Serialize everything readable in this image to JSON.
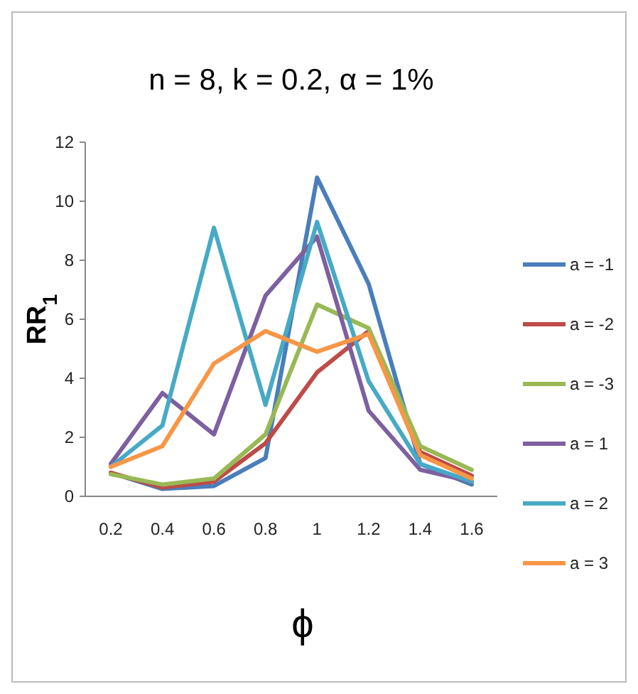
{
  "chart_data": {
    "type": "line",
    "title": "n = 8, k = 0.2, α = 1%",
    "xlabel": "ϕ",
    "ylabel": "RR$_{1}$",
    "categories": [
      "0.2",
      "0.4",
      "0.6",
      "0.8",
      "1",
      "1.2",
      "1.4",
      "1.6"
    ],
    "ylim": [
      0,
      12
    ],
    "yticks": [
      0,
      2,
      4,
      6,
      8,
      10,
      12
    ],
    "grid": false,
    "legend": "right",
    "marker": "none",
    "line_style": "solid",
    "series": [
      {
        "name": "a = -1",
        "color": "#4a7ebb",
        "values": [
          0.8,
          0.25,
          0.35,
          1.3,
          10.8,
          7.2,
          1.1,
          0.4
        ]
      },
      {
        "name": "a = -2",
        "color": "#be4b48",
        "values": [
          0.8,
          0.3,
          0.5,
          1.8,
          4.2,
          5.6,
          1.5,
          0.7
        ]
      },
      {
        "name": "a = -3",
        "color": "#98b954",
        "values": [
          0.75,
          0.4,
          0.6,
          2.1,
          6.5,
          5.7,
          1.7,
          0.9
        ]
      },
      {
        "name": "a = 1",
        "color": "#7d60a0",
        "values": [
          1.1,
          3.5,
          2.1,
          6.8,
          8.8,
          2.9,
          0.9,
          0.5
        ]
      },
      {
        "name": "a = 2",
        "color": "#46aac5",
        "values": [
          1.0,
          2.4,
          9.1,
          3.1,
          9.3,
          3.9,
          1.1,
          0.5
        ]
      },
      {
        "name": "a = 3",
        "color": "#f79646",
        "values": [
          1.0,
          1.7,
          4.5,
          5.6,
          4.9,
          5.5,
          1.4,
          0.6
        ]
      }
    ]
  }
}
